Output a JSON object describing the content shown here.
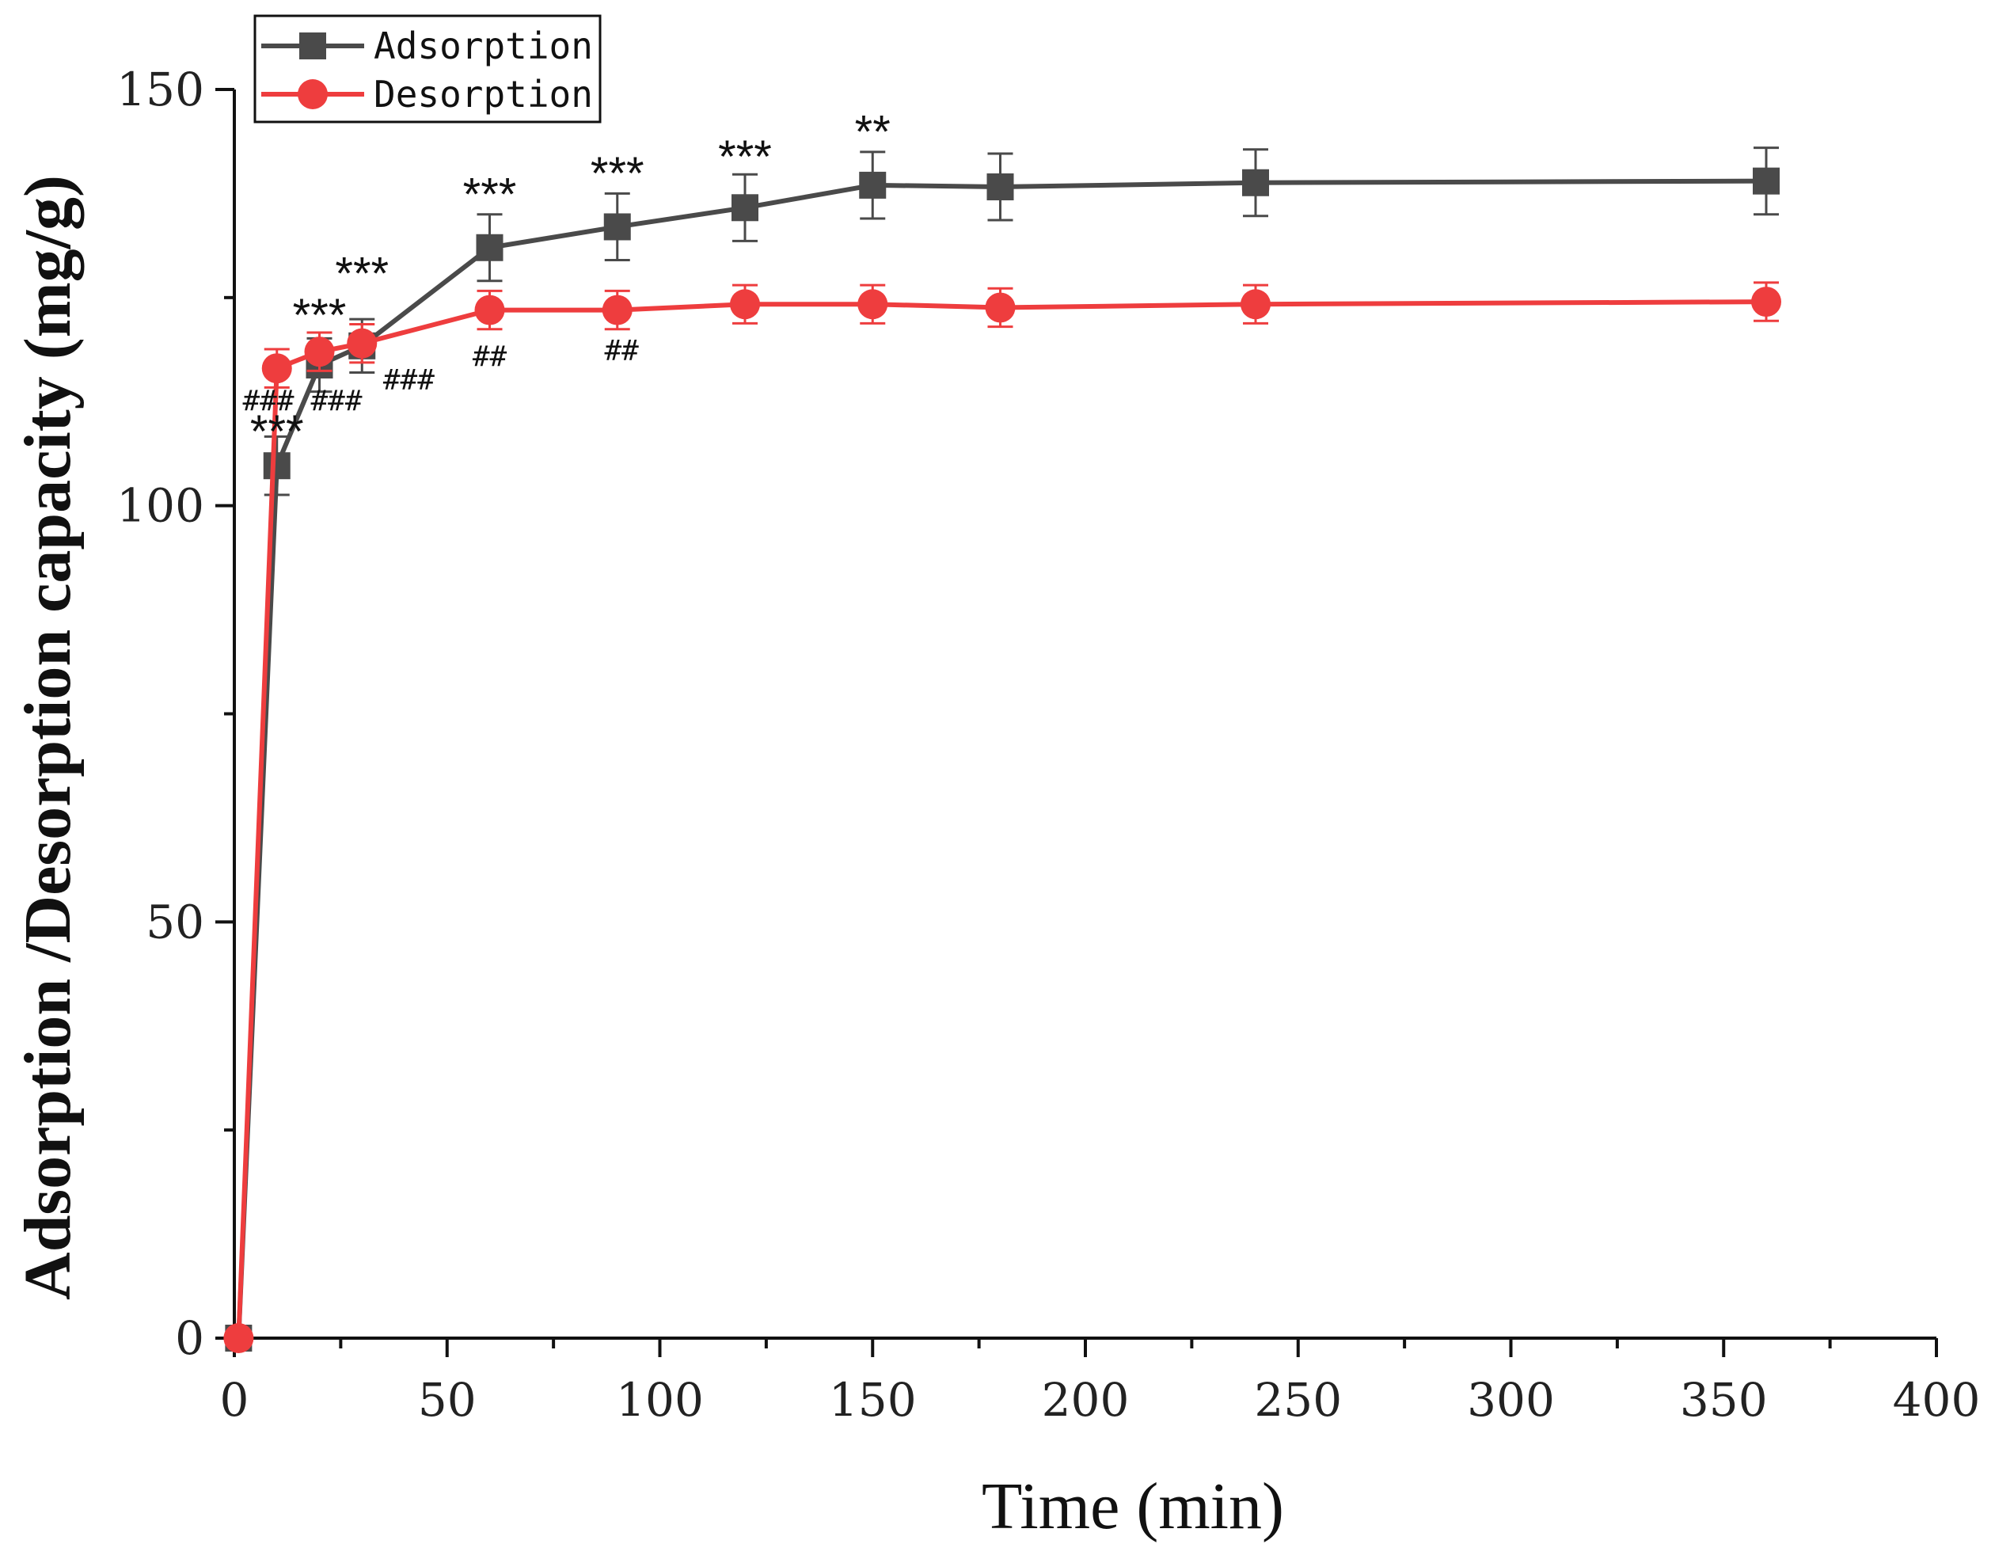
{
  "chart_data": {
    "type": "line",
    "title": "",
    "xlabel": "Time (min)",
    "ylabel": "Adsorption /Desorption capacity (mg/g)",
    "xlim": [
      0,
      400
    ],
    "ylim": [
      0,
      150
    ],
    "x_ticks": [
      0,
      50,
      100,
      150,
      200,
      250,
      300,
      350,
      400
    ],
    "x_tick_labels": [
      "0",
      "50",
      "100",
      "150",
      "200",
      "250",
      "300",
      "350",
      "400"
    ],
    "y_ticks": [
      0,
      50,
      100,
      150
    ],
    "y_tick_labels": [
      "0",
      "50",
      "100",
      "150"
    ],
    "grid": false,
    "legend_position": "top-left",
    "series": [
      {
        "name": "Adsorption",
        "color": "#4a4a4a",
        "marker": "square",
        "x": [
          1,
          10,
          20,
          30,
          60,
          90,
          120,
          150,
          180,
          240,
          360
        ],
        "values": [
          0,
          104.8,
          116.9,
          119.2,
          131,
          133.5,
          135.8,
          138.5,
          138.3,
          138.8,
          139
        ],
        "errors": [
          0,
          3.5,
          3.2,
          3.2,
          4,
          4,
          4,
          4,
          4,
          4,
          4
        ]
      },
      {
        "name": "Desorption",
        "color": "#ee3d3e",
        "marker": "circle",
        "x": [
          1,
          10,
          20,
          30,
          60,
          90,
          120,
          150,
          180,
          240,
          360
        ],
        "values": [
          0,
          116.5,
          118.5,
          119.5,
          123.5,
          123.5,
          124.2,
          124.2,
          123.8,
          124.2,
          124.5
        ],
        "errors": [
          0,
          2.3,
          2.3,
          2.3,
          2.3,
          2.3,
          2.3,
          2.3,
          2.3,
          2.3,
          2.3
        ]
      }
    ],
    "annotations": [
      {
        "text": "***",
        "x": 10,
        "y": 107,
        "kind": "star"
      },
      {
        "text": "***",
        "x": 20,
        "y": 121,
        "kind": "star"
      },
      {
        "text": "***",
        "x": 30,
        "y": 126,
        "kind": "star"
      },
      {
        "text": "***",
        "x": 60,
        "y": 135.5,
        "kind": "star"
      },
      {
        "text": "***",
        "x": 90,
        "y": 138,
        "kind": "star"
      },
      {
        "text": "***",
        "x": 120,
        "y": 140,
        "kind": "star"
      },
      {
        "text": "**",
        "x": 150,
        "y": 143,
        "kind": "star"
      },
      {
        "text": "###",
        "x": 8,
        "y": 111.5,
        "kind": "hash"
      },
      {
        "text": "###",
        "x": 24,
        "y": 111.5,
        "kind": "hash"
      },
      {
        "text": "###",
        "x": 41,
        "y": 114,
        "kind": "hash"
      },
      {
        "text": "##",
        "x": 60,
        "y": 116.8,
        "kind": "hash"
      },
      {
        "text": "##",
        "x": 91,
        "y": 117.5,
        "kind": "hash"
      }
    ]
  }
}
